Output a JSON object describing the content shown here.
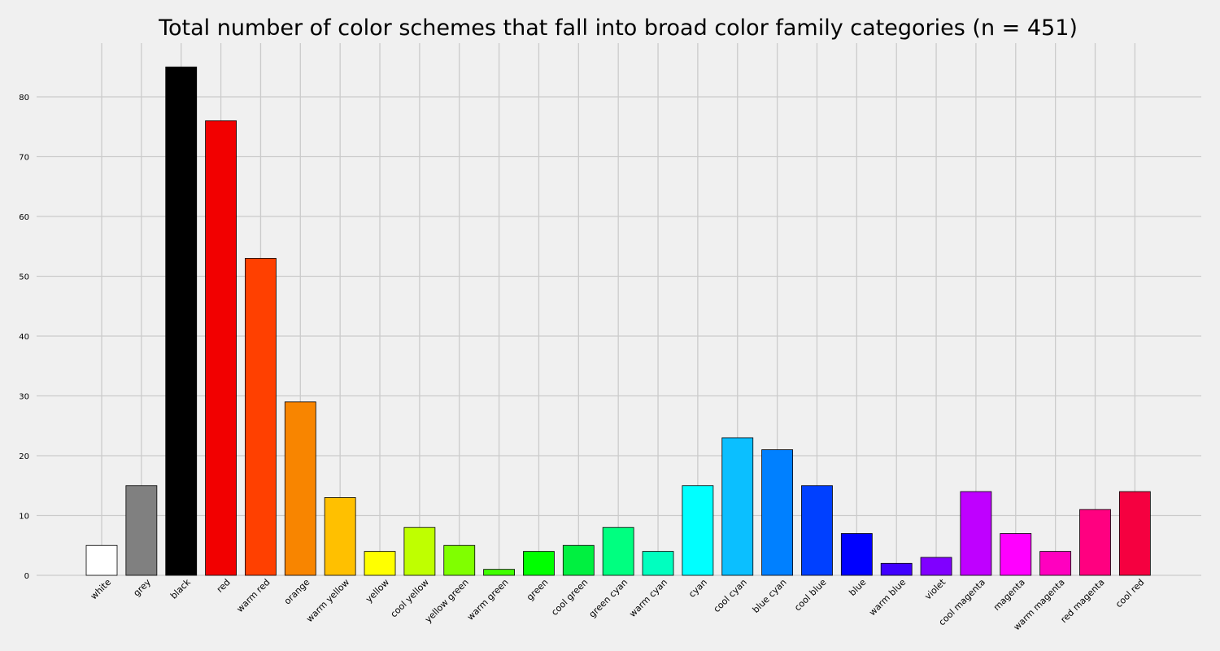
{
  "chart_data": {
    "type": "bar",
    "title": "Total number of color schemes that fall into broad color family categories (n = 451)",
    "xlabel": "",
    "ylabel": "",
    "ylim": [
      0,
      89
    ],
    "yticks": [
      0,
      10,
      20,
      30,
      40,
      50,
      60,
      70,
      80
    ],
    "grid": true,
    "categories": [
      "white",
      "grey",
      "black",
      "red",
      "warm red",
      "orange",
      "warm yellow",
      "yellow",
      "cool yellow",
      "yellow green",
      "warm green",
      "green",
      "cool green",
      "green cyan",
      "warm cyan",
      "cyan",
      "cool cyan",
      "blue cyan",
      "cool blue",
      "blue",
      "warm blue",
      "violet",
      "cool magenta",
      "magenta",
      "warm magenta",
      "red magenta",
      "cool red"
    ],
    "values": [
      5,
      15,
      85,
      76,
      53,
      29,
      13,
      4,
      8,
      5,
      1,
      4,
      5,
      8,
      4,
      15,
      23,
      21,
      15,
      7,
      2,
      3,
      14,
      7,
      4,
      11,
      14
    ],
    "colors": [
      "#ffffff",
      "#808080",
      "#000000",
      "#f20000",
      "#ff4000",
      "#f88500",
      "#ffc000",
      "#ffff00",
      "#bfff00",
      "#80ff00",
      "#40ff00",
      "#00ff00",
      "#00f040",
      "#00ff80",
      "#00ffbf",
      "#00ffff",
      "#0bbfff",
      "#0080ff",
      "#0040ff",
      "#0000ff",
      "#4000ff",
      "#8000ff",
      "#bf00ff",
      "#ff00ff",
      "#ff00bf",
      "#ff0080",
      "#f50040"
    ]
  }
}
